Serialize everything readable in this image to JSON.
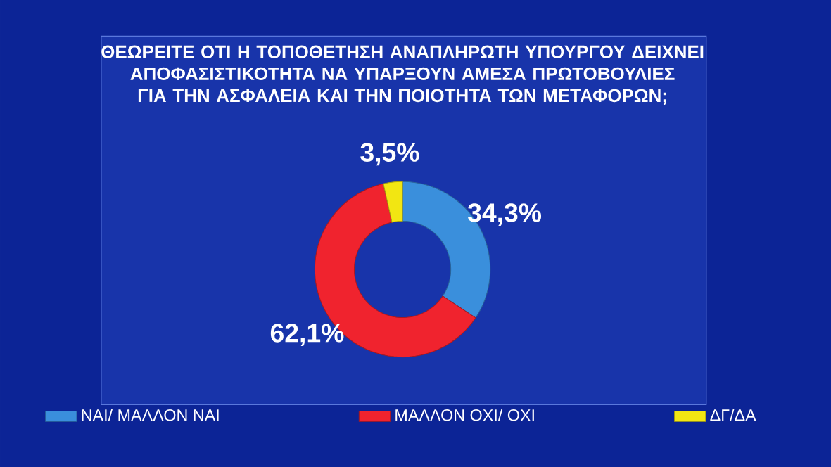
{
  "chart_data": {
    "type": "donut",
    "title": "ΘΕΩΡΕΙΤΕ ΟΤΙ Η ΤΟΠΟΘΕΤΗΣΗ ΑΝΑΠΛΗΡΩΤΗ ΥΠΟΥΡΓΟΥ ΔΕΙΧΝΕΙ ΑΠΟΦΑΣΙΣΤΙΚΟΤΗΤΑ ΝΑ ΥΠΑΡΞΟΥΝ ΑΜΕΣΑ ΠΡΩΤΟΒΟΥΛΙΕΣ ΓΙΑ ΤΗΝ ΑΣΦΑΛΕΙΑ ΚΑΙ ΤΗΝ ΠΟΙΟΤΗΤΑ ΤΩΝ ΜΕΤΑΦΟΡΩΝ;",
    "categories": [
      "ΝΑΙ/ ΜΑΛΛΟΝ ΝΑΙ",
      "ΜΑΛΛΟΝ ΟΧΙ/ ΟΧΙ",
      "ΔΓ/ΔΑ"
    ],
    "values": [
      34.3,
      62.1,
      3.5
    ],
    "value_labels": [
      "34,3%",
      "62,1%",
      "3,5%"
    ],
    "colors": [
      "#3a8fdc",
      "#f0232e",
      "#f2e612"
    ],
    "legend": "bottom"
  }
}
